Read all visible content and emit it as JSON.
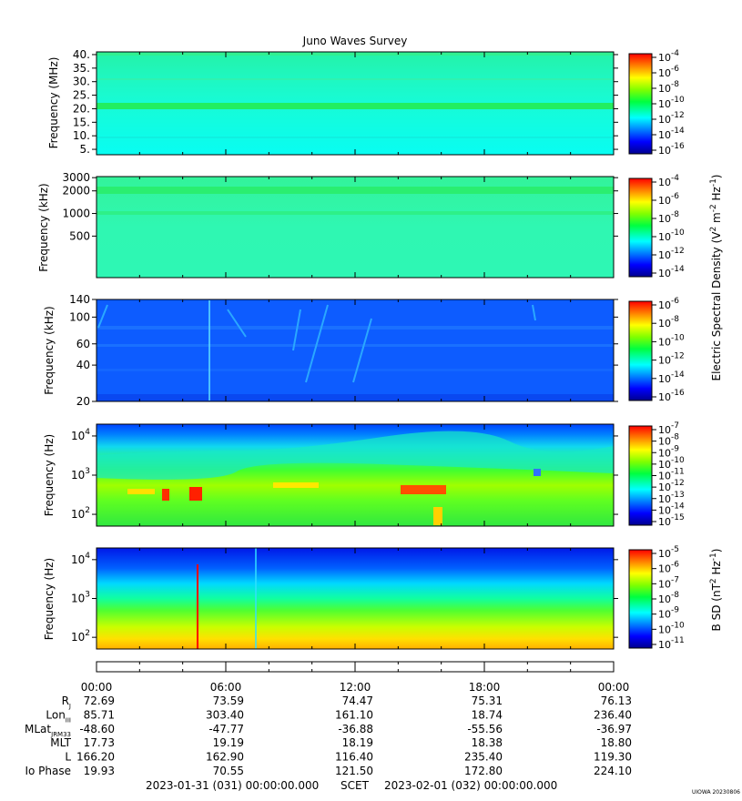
{
  "title": "Juno Waves Survey",
  "chart_data": [
    {
      "type": "heatmap",
      "ylabel": "Frequency (MHz)",
      "yticks": [
        "40.",
        "35.",
        "30.",
        "25.",
        "20.",
        "15.",
        "10.",
        "5."
      ],
      "ytick_values": [
        40,
        35,
        30,
        25,
        20,
        15,
        10,
        5
      ],
      "ylim": [
        3,
        41
      ],
      "scale": "linear",
      "colorbar": {
        "ticks": [
          "10-4",
          "10-6",
          "10-8",
          "10-10",
          "10-12",
          "10-14",
          "10-16"
        ],
        "exponents": [
          "-4",
          "-6",
          "-8",
          "-10",
          "-12",
          "-14",
          "-16"
        ],
        "label": ""
      }
    },
    {
      "type": "heatmap",
      "ylabel": "Frequency (kHz)",
      "yticks": [
        "3000",
        "2000",
        "1000",
        "500"
      ],
      "ytick_values": [
        3000,
        2000,
        1000,
        500
      ],
      "ylim": [
        140,
        3100
      ],
      "scale": "log",
      "colorbar": {
        "ticks": [
          "10-4",
          "10-6",
          "10-8",
          "10-10",
          "10-12",
          "10-14"
        ],
        "exponents": [
          "-4",
          "-6",
          "-8",
          "-10",
          "-12",
          "-14"
        ],
        "label": "Electric Spectral Density (V2 m-2 Hz-1)"
      }
    },
    {
      "type": "heatmap",
      "ylabel": "Frequency (kHz)",
      "yticks": [
        "140",
        "100",
        "60",
        "40",
        "20"
      ],
      "ytick_values": [
        140,
        100,
        60,
        40,
        20
      ],
      "ylim": [
        20,
        140
      ],
      "scale": "log",
      "colorbar": {
        "ticks": [
          "10-6",
          "10-8",
          "10-10",
          "10-12",
          "10-14",
          "10-16"
        ],
        "exponents": [
          "-6",
          "-8",
          "-10",
          "-12",
          "-14",
          "-16"
        ],
        "label": ""
      }
    },
    {
      "type": "heatmap",
      "ylabel": "Frequency (Hz)",
      "yticks": [
        "104",
        "103",
        "102"
      ],
      "ytick_exponents": [
        "4",
        "3",
        "2"
      ],
      "ytick_values": [
        10000,
        1000,
        100
      ],
      "ylim": [
        50,
        20000
      ],
      "scale": "log",
      "colorbar": {
        "ticks": [
          "10-7",
          "10-8",
          "10-9",
          "10-10",
          "10-11",
          "10-12",
          "10-13",
          "10-14",
          "10-15"
        ],
        "exponents": [
          "-7",
          "-8",
          "-9",
          "-10",
          "-11",
          "-12",
          "-13",
          "-14",
          "-15"
        ],
        "label": ""
      }
    },
    {
      "type": "heatmap",
      "ylabel": "Frequency (Hz)",
      "yticks": [
        "104",
        "103",
        "102"
      ],
      "ytick_exponents": [
        "4",
        "3",
        "2"
      ],
      "ytick_values": [
        10000,
        1000,
        100
      ],
      "ylim": [
        50,
        20000
      ],
      "scale": "log",
      "colorbar": {
        "ticks": [
          "10-5",
          "10-6",
          "10-7",
          "10-8",
          "10-9",
          "10-10",
          "10-11"
        ],
        "exponents": [
          "-5",
          "-6",
          "-7",
          "-8",
          "-9",
          "-10",
          "-11"
        ],
        "label": "B SD (nT2 Hz-1)"
      }
    }
  ],
  "colorbar_label_electric": {
    "pre": "Electric Spectral Density (V",
    "sup1": "2",
    "mid": " m",
    "sup2": "-2",
    "mid2": " Hz",
    "sup3": "-1",
    "post": ")"
  },
  "colorbar_label_magnetic": {
    "pre": "B SD (nT",
    "sup1": "2",
    "mid": " Hz",
    "sup2": "-1",
    "post": ")"
  },
  "x_axis": {
    "times": [
      "00:00",
      "06:00",
      "12:00",
      "18:00",
      "00:00"
    ],
    "rows": [
      {
        "label": "R",
        "sub": "J",
        "values": [
          "72.69",
          "73.59",
          "74.47",
          "75.31",
          "76.13"
        ]
      },
      {
        "label": "Lon",
        "sub": "III",
        "values": [
          "85.71",
          "303.40",
          "161.10",
          "18.74",
          "236.40"
        ]
      },
      {
        "label": "MLat",
        "sub": "JRM33",
        "values": [
          "-48.60",
          "-47.77",
          "-36.88",
          "-55.56",
          "-36.97"
        ]
      },
      {
        "label": "MLT",
        "sub": "",
        "values": [
          "17.73",
          "19.19",
          "18.19",
          "18.38",
          "18.80"
        ]
      },
      {
        "label": "L",
        "sub": "",
        "values": [
          "166.20",
          "162.90",
          "116.40",
          "235.40",
          "119.30"
        ]
      },
      {
        "label": "Io Phase",
        "sub": "",
        "values": [
          "19.93",
          "70.55",
          "121.50",
          "172.80",
          "224.10"
        ]
      }
    ]
  },
  "footer": {
    "start": "2023-01-31 (031) 00:00:00.000",
    "scet": "SCET",
    "end": "2023-02-01 (032) 00:00:00.000",
    "credit": "UIOWA 20230806"
  }
}
